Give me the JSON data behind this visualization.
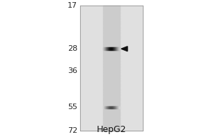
{
  "title": "HepG2",
  "mw_markers": [
    72,
    55,
    36,
    28,
    17
  ],
  "fig_bg": "#ffffff",
  "outer_bg": "#ffffff",
  "gel_bg": "#e0e0e0",
  "lane_bg": "#d0d0d0",
  "band_55_rel": 0.22,
  "band_55_intensity": 0.75,
  "band_28_rel": 0.6,
  "band_28_intensity": 0.95,
  "marker_fontsize": 8,
  "title_fontsize": 9,
  "marker_color": "#222222",
  "title_color": "#111111",
  "arrow_color": "#111111"
}
